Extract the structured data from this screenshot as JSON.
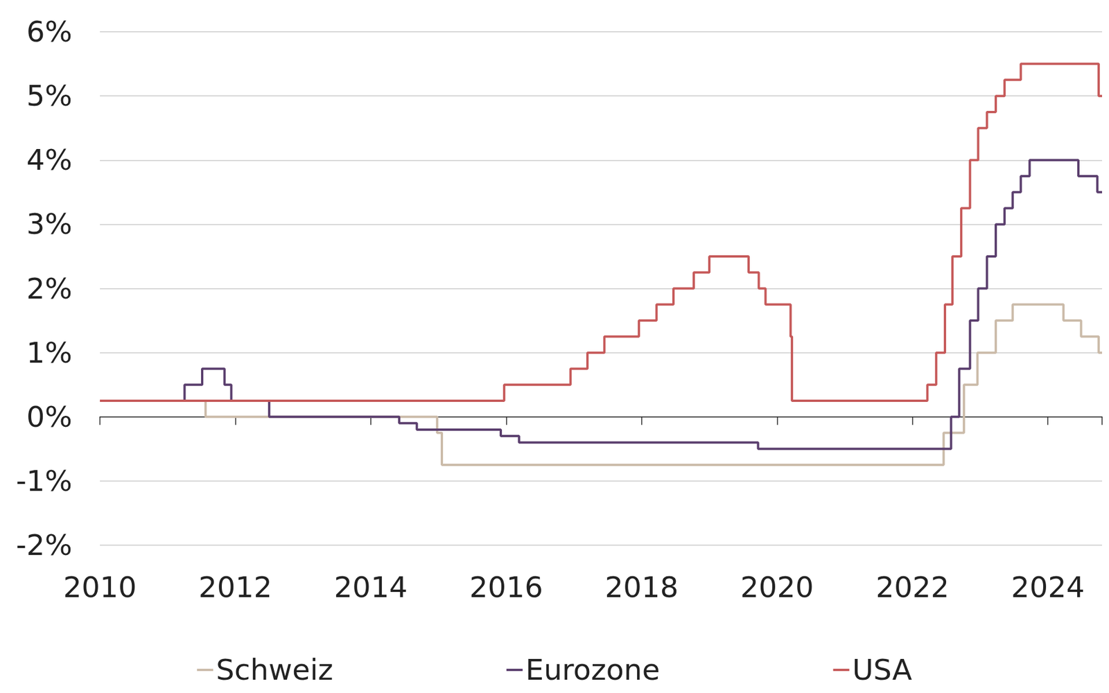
{
  "chart_data": {
    "type": "line",
    "line_style": "step",
    "grid": true,
    "legend": "bottom",
    "xlim": [
      2010,
      2024.8
    ],
    "xticks": [
      2010,
      2012,
      2014,
      2016,
      2018,
      2020,
      2022,
      2024
    ],
    "ylim": [
      -2,
      6
    ],
    "yticks": [
      {
        "value": -2,
        "label": "-2%"
      },
      {
        "value": -1,
        "label": "-1%"
      },
      {
        "value": 0,
        "label": "0%"
      },
      {
        "value": 1,
        "label": "1%"
      },
      {
        "value": 2,
        "label": "2%"
      },
      {
        "value": 3,
        "label": "3%"
      },
      {
        "value": 4,
        "label": "4%"
      },
      {
        "value": 5,
        "label": "5%"
      },
      {
        "value": 6,
        "label": "6%"
      }
    ],
    "series": [
      {
        "name": "Schweiz",
        "color": "#cbbba9",
        "x": [
          2010,
          2011.56,
          2014.98,
          2015.05,
          2022.46,
          2022.76,
          2022.96,
          2023.23,
          2023.48,
          2024.23,
          2024.49,
          2024.75,
          2024.8
        ],
        "values": [
          0.25,
          0,
          -0.25,
          -0.75,
          -0.25,
          0.5,
          1,
          1.5,
          1.75,
          1.5,
          1.25,
          1,
          1
        ]
      },
      {
        "name": "Eurozone",
        "color": "#5b3f6e",
        "x": [
          2010,
          2011.25,
          2011.51,
          2011.84,
          2011.94,
          2012.5,
          2014.42,
          2014.68,
          2015.92,
          2016.19,
          2019.72,
          2022.57,
          2022.69,
          2022.85,
          2022.97,
          2023.1,
          2023.23,
          2023.36,
          2023.48,
          2023.6,
          2023.73,
          2024.45,
          2024.73,
          2024.8
        ],
        "values": [
          0.25,
          0.5,
          0.75,
          0.5,
          0.25,
          0,
          -0.1,
          -0.2,
          -0.3,
          -0.4,
          -0.5,
          0,
          0.75,
          1.5,
          2,
          2.5,
          3,
          3.25,
          3.5,
          3.75,
          4,
          3.75,
          3.5,
          3.5
        ]
      },
      {
        "name": "USA",
        "color": "#c65a5a",
        "x": [
          2010,
          2015.97,
          2016.95,
          2017.2,
          2017.45,
          2017.96,
          2018.22,
          2018.47,
          2018.77,
          2019.0,
          2019.58,
          2019.73,
          2019.83,
          2020.2,
          2020.22,
          2022.22,
          2022.35,
          2022.48,
          2022.59,
          2022.72,
          2022.85,
          2022.97,
          2023.1,
          2023.23,
          2023.36,
          2023.6,
          2024.75,
          2024.8
        ],
        "values": [
          0.25,
          0.5,
          0.75,
          1,
          1.25,
          1.5,
          1.75,
          2,
          2.25,
          2.5,
          2.25,
          2,
          1.75,
          1.25,
          0.25,
          0.5,
          1,
          1.75,
          2.5,
          3.25,
          4,
          4.5,
          4.75,
          5,
          5.25,
          5.5,
          5,
          5
        ]
      }
    ]
  }
}
